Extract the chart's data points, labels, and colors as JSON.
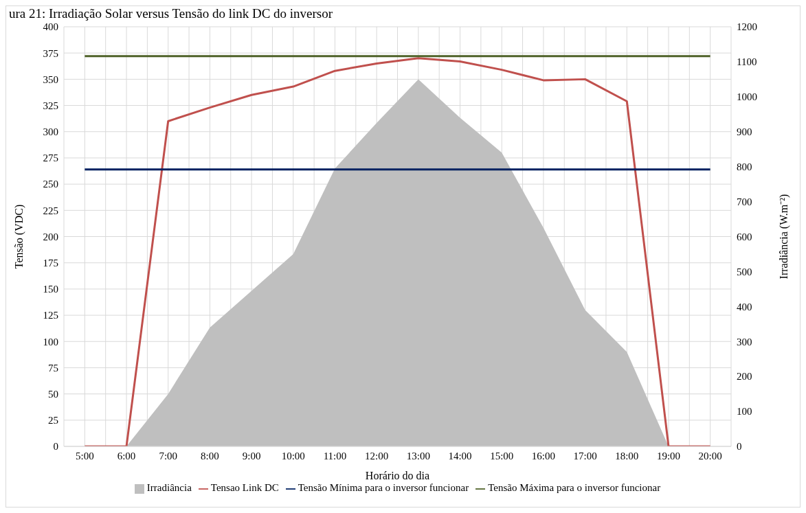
{
  "chart_data": {
    "type": "line",
    "title": "ura 21: Irradiação Solar versus Tensão do link DC do inversor",
    "xlabel": "Horário do dia",
    "ylabel": "Tensão (VDC)",
    "y2label": "Irradiância (W.m⁻²)",
    "categories": [
      "5:00",
      "6:00",
      "7:00",
      "8:00",
      "9:00",
      "10:00",
      "11:00",
      "12:00",
      "13:00",
      "14:00",
      "15:00",
      "16:00",
      "17:00",
      "18:00",
      "19:00",
      "20:00"
    ],
    "series": [
      {
        "name": "Irradiância",
        "type": "area",
        "axis": "y2",
        "color": "#bfbfbf",
        "values": [
          0,
          0,
          150,
          340,
          445,
          550,
          795,
          925,
          1050,
          940,
          840,
          625,
          390,
          270,
          0,
          0
        ]
      },
      {
        "name": "Tensao Link DC",
        "color": "#c0504d",
        "values": [
          0,
          0,
          310,
          323,
          335,
          343,
          358,
          365,
          370,
          367,
          359,
          349,
          350,
          329,
          0,
          0
        ]
      },
      {
        "name": "Tensão Mínima para o inversor funcionar",
        "color": "#002060",
        "values": [
          264,
          264,
          264,
          264,
          264,
          264,
          264,
          264,
          264,
          264,
          264,
          264,
          264,
          264,
          264,
          264
        ]
      },
      {
        "name": "Tensão Máxima para o inversor funcionar",
        "color": "#4f6228",
        "values": [
          372,
          372,
          372,
          372,
          372,
          372,
          372,
          372,
          372,
          372,
          372,
          372,
          372,
          372,
          372,
          372
        ]
      }
    ],
    "ylim": [
      0,
      400
    ],
    "yticks": [
      0,
      25,
      50,
      75,
      100,
      125,
      150,
      175,
      200,
      225,
      250,
      275,
      300,
      325,
      350,
      375,
      400
    ],
    "y2lim": [
      0,
      1200
    ],
    "y2ticks": [
      0,
      100,
      200,
      300,
      400,
      500,
      600,
      700,
      800,
      900,
      1000,
      1100,
      1200
    ],
    "grid": true,
    "legend": "bottom",
    "marker": "none",
    "line_style": "solid"
  }
}
